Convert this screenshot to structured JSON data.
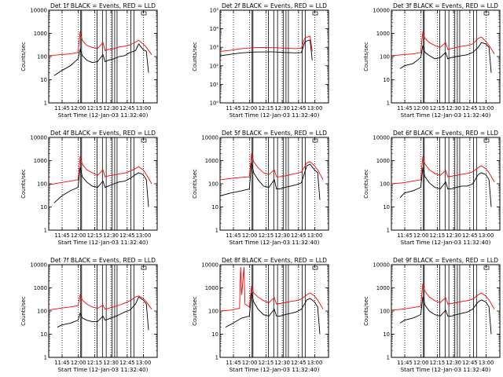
{
  "colors": {
    "events": "#000000",
    "lld": "#ff0000",
    "axis": "#000000"
  },
  "shared": {
    "ylabel": "Counts/sec",
    "xlabel": "Start Time (12-Jan-03 11:32:40)",
    "x_ticks": [
      "11:45",
      "12:00",
      "12:15",
      "12:30",
      "12:45",
      "13:00"
    ],
    "x_tick_minutes": [
      12.33,
      27.33,
      42.33,
      57.33,
      72.33,
      87.33
    ],
    "x_range_minutes": [
      0,
      100
    ],
    "dotted_lines_minutes": [
      12.33,
      27.33,
      42.33,
      57.33,
      72.33,
      87.33
    ],
    "solid_lines_minutes": [
      29.5,
      30.3,
      44.5,
      49.5,
      53.0,
      58.5,
      60.8,
      63.0,
      75.8,
      78.5
    ],
    "legend_box_label": "",
    "y_range_default": [
      1,
      10000
    ],
    "y_ticks_default": [
      "1",
      "10",
      "100",
      "1000",
      "10000"
    ],
    "y_ticks_det2": [
      "10⁰",
      "10¹",
      "10²",
      "10³",
      "10⁴",
      "10⁵"
    ]
  },
  "chart_data": [
    {
      "type": "line",
      "title": "Det 1f BLACK = Events, RED = LLD",
      "ylim": [
        1,
        10000
      ],
      "log_y": true,
      "series": [
        {
          "name": "Events",
          "x": [
            5,
            12,
            20,
            27,
            29,
            31,
            35,
            40,
            45,
            50,
            52,
            55,
            60,
            65,
            70,
            75,
            80,
            83,
            87,
            90,
            92
          ],
          "y": [
            15,
            25,
            40,
            80,
            200,
            110,
            70,
            55,
            60,
            120,
            60,
            70,
            80,
            100,
            110,
            150,
            180,
            350,
            200,
            170,
            20
          ]
        },
        {
          "name": "LLD",
          "x": [
            0,
            10,
            20,
            27,
            29,
            31,
            35,
            40,
            45,
            50,
            52,
            55,
            60,
            65,
            70,
            75,
            80,
            83,
            87,
            90,
            95
          ],
          "y": [
            110,
            120,
            130,
            150,
            1200,
            500,
            300,
            250,
            220,
            400,
            180,
            200,
            220,
            260,
            280,
            320,
            420,
            500,
            350,
            250,
            120
          ]
        }
      ]
    },
    {
      "type": "line",
      "title": "Det 2f BLACK = Events, RED = LLD",
      "ylim": [
        1,
        100000
      ],
      "log_y": true,
      "series": [
        {
          "name": "Events",
          "x": [
            0,
            10,
            20,
            30,
            40,
            50,
            60,
            70,
            75,
            78,
            80,
            83,
            85
          ],
          "y": [
            350,
            420,
            500,
            550,
            560,
            560,
            520,
            500,
            520,
            1800,
            2200,
            2500,
            200
          ]
        },
        {
          "name": "LLD",
          "x": [
            0,
            10,
            20,
            30,
            40,
            50,
            60,
            70,
            75,
            78,
            80,
            83,
            85
          ],
          "y": [
            600,
            700,
            850,
            950,
            980,
            950,
            900,
            850,
            900,
            3000,
            3500,
            4000,
            600
          ]
        }
      ]
    },
    {
      "type": "line",
      "title": "Det 3f BLACK = Events, RED = LLD",
      "ylim": [
        1,
        10000
      ],
      "log_y": true,
      "series": [
        {
          "name": "Events",
          "x": [
            8,
            12,
            20,
            27,
            29,
            31,
            35,
            40,
            45,
            50,
            52,
            55,
            60,
            65,
            70,
            75,
            80,
            83,
            87,
            90,
            92
          ],
          "y": [
            30,
            40,
            50,
            90,
            300,
            150,
            110,
            80,
            90,
            150,
            80,
            90,
            100,
            110,
            120,
            150,
            250,
            400,
            350,
            250,
            20
          ]
        },
        {
          "name": "LLD",
          "x": [
            0,
            10,
            20,
            27,
            29,
            31,
            35,
            40,
            45,
            50,
            52,
            55,
            60,
            65,
            70,
            75,
            80,
            83,
            87,
            90,
            95
          ],
          "y": [
            110,
            120,
            130,
            150,
            1200,
            600,
            400,
            300,
            250,
            400,
            200,
            220,
            250,
            280,
            300,
            350,
            600,
            700,
            450,
            300,
            130
          ]
        }
      ]
    },
    {
      "type": "line",
      "title": "Det 4f BLACK = Events, RED = LLD",
      "ylim": [
        1,
        10000
      ],
      "log_y": true,
      "series": [
        {
          "name": "Events",
          "x": [
            5,
            12,
            20,
            27,
            29,
            31,
            35,
            40,
            45,
            50,
            52,
            55,
            60,
            65,
            70,
            75,
            80,
            83,
            87,
            90,
            92
          ],
          "y": [
            15,
            30,
            50,
            70,
            500,
            200,
            120,
            80,
            70,
            130,
            70,
            80,
            100,
            120,
            130,
            170,
            250,
            300,
            250,
            150,
            10
          ]
        },
        {
          "name": "LLD",
          "x": [
            0,
            10,
            20,
            27,
            29,
            31,
            35,
            40,
            45,
            50,
            52,
            55,
            60,
            65,
            70,
            75,
            80,
            83,
            87,
            90,
            95
          ],
          "y": [
            90,
            110,
            130,
            150,
            1500,
            700,
            400,
            300,
            230,
            400,
            200,
            220,
            240,
            270,
            290,
            350,
            450,
            550,
            400,
            250,
            100
          ]
        }
      ]
    },
    {
      "type": "line",
      "title": "Det 5f BLACK = Events, RED = LLD",
      "ylim": [
        1,
        10000
      ],
      "log_y": true,
      "series": [
        {
          "name": "Events",
          "x": [
            0,
            10,
            20,
            27,
            29,
            31,
            35,
            40,
            45,
            50,
            52,
            55,
            60,
            65,
            70,
            75,
            80,
            83,
            87,
            90,
            92
          ],
          "y": [
            30,
            40,
            50,
            60,
            800,
            300,
            150,
            80,
            70,
            150,
            60,
            60,
            70,
            80,
            90,
            110,
            600,
            700,
            400,
            300,
            20
          ]
        },
        {
          "name": "LLD",
          "x": [
            0,
            10,
            20,
            27,
            29,
            31,
            35,
            40,
            45,
            50,
            52,
            55,
            60,
            65,
            70,
            75,
            80,
            83,
            87,
            90,
            95
          ],
          "y": [
            150,
            170,
            190,
            200,
            2000,
            900,
            500,
            300,
            250,
            400,
            200,
            200,
            220,
            250,
            280,
            320,
            800,
            900,
            600,
            400,
            150
          ]
        }
      ]
    },
    {
      "type": "line",
      "title": "Det 6f BLACK = Events, RED = LLD",
      "ylim": [
        1,
        10000
      ],
      "log_y": true,
      "series": [
        {
          "name": "Events",
          "x": [
            8,
            12,
            20,
            27,
            29,
            31,
            35,
            40,
            45,
            50,
            52,
            55,
            60,
            65,
            70,
            75,
            80,
            83,
            87,
            90,
            92
          ],
          "y": [
            25,
            40,
            50,
            70,
            500,
            200,
            110,
            70,
            60,
            120,
            60,
            60,
            70,
            80,
            80,
            100,
            250,
            300,
            250,
            150,
            10
          ]
        },
        {
          "name": "LLD",
          "x": [
            0,
            10,
            20,
            27,
            29,
            31,
            35,
            40,
            45,
            50,
            52,
            55,
            60,
            65,
            70,
            75,
            80,
            83,
            87,
            90,
            95
          ],
          "y": [
            100,
            110,
            130,
            150,
            1500,
            700,
            400,
            280,
            230,
            380,
            200,
            210,
            230,
            260,
            280,
            330,
            500,
            600,
            450,
            300,
            120
          ]
        }
      ]
    },
    {
      "type": "line",
      "title": "Det 7f BLACK = Events, RED = LLD",
      "ylim": [
        1,
        10000
      ],
      "log_y": true,
      "series": [
        {
          "name": "Events",
          "x": [
            8,
            12,
            20,
            27,
            29,
            31,
            35,
            40,
            45,
            50,
            52,
            55,
            60,
            65,
            70,
            75,
            80,
            83,
            87,
            90,
            92
          ],
          "y": [
            20,
            25,
            30,
            40,
            80,
            50,
            40,
            35,
            35,
            60,
            40,
            45,
            55,
            70,
            90,
            110,
            200,
            400,
            300,
            200,
            15
          ]
        },
        {
          "name": "LLD",
          "x": [
            0,
            10,
            20,
            27,
            29,
            31,
            35,
            40,
            45,
            50,
            52,
            55,
            60,
            65,
            70,
            75,
            80,
            83,
            87,
            90,
            95
          ],
          "y": [
            110,
            130,
            150,
            170,
            500,
            300,
            200,
            150,
            130,
            180,
            120,
            130,
            150,
            180,
            220,
            280,
            400,
            450,
            350,
            250,
            120
          ]
        }
      ]
    },
    {
      "type": "line",
      "title": "Det 8f BLACK = Events, RED = LLD",
      "ylim": [
        1,
        10000
      ],
      "log_y": true,
      "series": [
        {
          "name": "Events",
          "x": [
            5,
            12,
            20,
            27,
            29,
            31,
            35,
            40,
            45,
            50,
            52,
            55,
            60,
            65,
            70,
            75,
            80,
            83,
            87,
            90,
            92
          ],
          "y": [
            20,
            30,
            50,
            60,
            600,
            250,
            120,
            70,
            60,
            120,
            60,
            60,
            70,
            80,
            90,
            120,
            300,
            350,
            250,
            150,
            10
          ]
        },
        {
          "name": "LLD",
          "x": [
            0,
            10,
            18,
            19,
            20,
            22,
            23,
            27,
            29,
            31,
            35,
            40,
            45,
            50,
            52,
            55,
            60,
            65,
            70,
            75,
            80,
            83,
            87,
            90,
            95
          ],
          "y": [
            100,
            110,
            130,
            8000,
            500,
            8000,
            200,
            150,
            1200,
            600,
            400,
            280,
            230,
            380,
            200,
            210,
            230,
            260,
            280,
            330,
            500,
            600,
            450,
            300,
            120
          ]
        }
      ]
    },
    {
      "type": "line",
      "title": "Det 9f BLACK = Events, RED = LLD",
      "ylim": [
        1,
        10000
      ],
      "log_y": true,
      "series": [
        {
          "name": "Events",
          "x": [
            8,
            12,
            20,
            27,
            29,
            31,
            35,
            40,
            45,
            50,
            52,
            55,
            60,
            65,
            70,
            75,
            80,
            83,
            87,
            90,
            92
          ],
          "y": [
            30,
            40,
            50,
            70,
            400,
            180,
            100,
            70,
            60,
            110,
            60,
            60,
            70,
            80,
            90,
            120,
            250,
            300,
            250,
            150,
            10
          ]
        },
        {
          "name": "LLD",
          "x": [
            0,
            10,
            20,
            27,
            29,
            31,
            35,
            40,
            45,
            50,
            52,
            55,
            60,
            65,
            70,
            75,
            80,
            83,
            87,
            90,
            95
          ],
          "y": [
            110,
            120,
            140,
            160,
            1500,
            700,
            400,
            280,
            230,
            380,
            200,
            210,
            230,
            260,
            280,
            330,
            500,
            600,
            450,
            300,
            120
          ]
        }
      ]
    }
  ]
}
